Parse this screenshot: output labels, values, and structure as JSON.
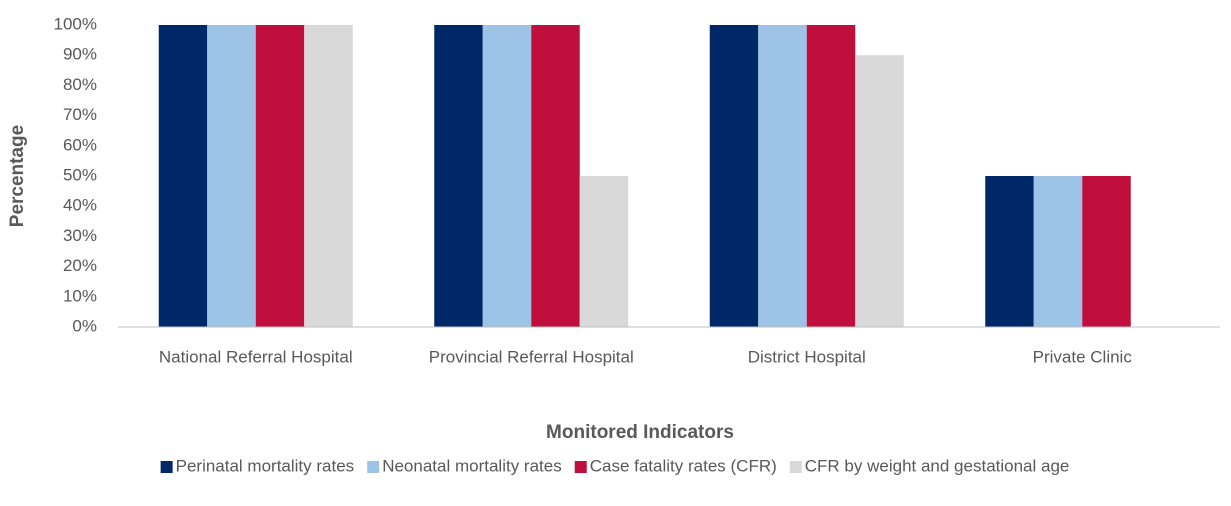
{
  "chart_data": {
    "type": "bar",
    "x_label": "Monitored Indicators",
    "y_label": "Percentage",
    "categories": [
      "National Referral Hospital",
      "Provincial Referral Hospital",
      "District Hospital",
      "Private Clinic"
    ],
    "series": [
      {
        "name": "Perinatal mortality rates",
        "color": "#002868",
        "values": [
          100,
          100,
          100,
          50
        ]
      },
      {
        "name": "Neonatal mortality rates",
        "color": "#9dc3e6",
        "values": [
          100,
          100,
          100,
          50
        ]
      },
      {
        "name": "Case fatality rates (CFR)",
        "color": "#c00f3c",
        "values": [
          100,
          100,
          100,
          50
        ]
      },
      {
        "name": "CFR by weight and gestational age",
        "color": "#d9d9d9",
        "values": [
          100,
          50,
          90,
          0
        ]
      }
    ],
    "ylim": [
      0,
      100
    ],
    "yticks": [
      {
        "value": 0,
        "label": "0%"
      },
      {
        "value": 10,
        "label": "10%"
      },
      {
        "value": 20,
        "label": "20%"
      },
      {
        "value": 30,
        "label": "30%"
      },
      {
        "value": 40,
        "label": "40%"
      },
      {
        "value": 50,
        "label": "50%"
      },
      {
        "value": 60,
        "label": "60%"
      },
      {
        "value": 70,
        "label": "70%"
      },
      {
        "value": 80,
        "label": "80%"
      },
      {
        "value": 90,
        "label": "90%"
      },
      {
        "value": 100,
        "label": "100%"
      }
    ],
    "grid": false,
    "legend": "bottom"
  }
}
